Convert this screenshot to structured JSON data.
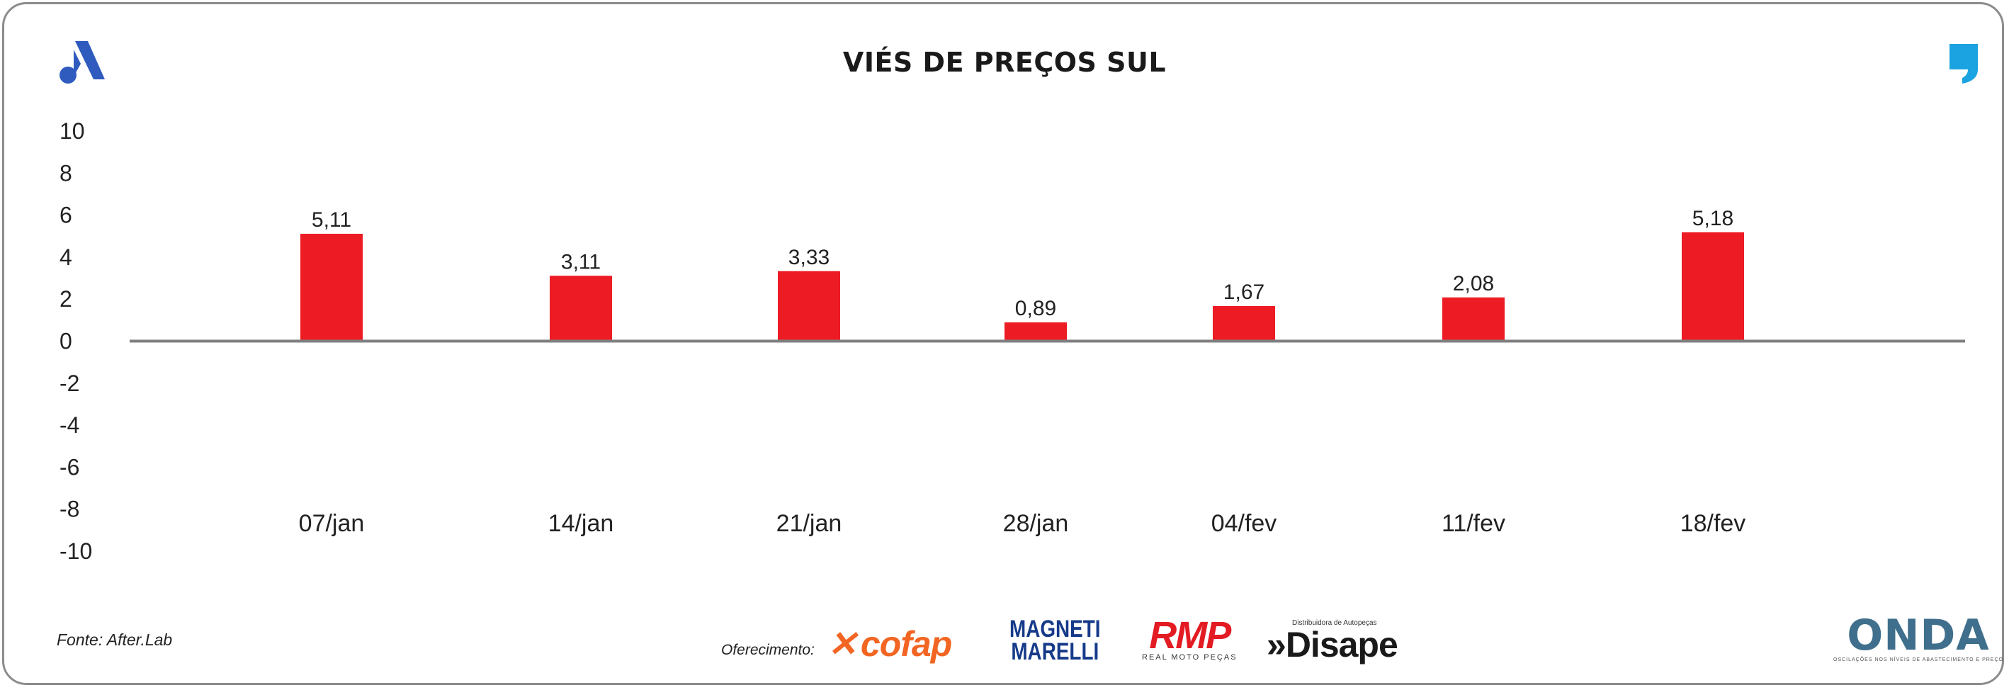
{
  "title": "VIÉS DE PREÇOS SUL",
  "source": "Fonte: After.Lab",
  "sponsors": {
    "label": "Oferecimento:",
    "cofap": "cofap",
    "magneti_line1": "MAGNETI",
    "magneti_line2": "MARELLI",
    "rmp": "RMP",
    "rmp_sub": "REAL MOTO PEÇAS",
    "disape_tag": "Distribuidora de Autopeças",
    "disape": "Disape"
  },
  "onda": {
    "name": "ONDA",
    "sub": "OSCILAÇÕES NOS NÍVEIS DE ABASTECIMENTO E PREÇO"
  },
  "colors": {
    "bar": "#ed1c24",
    "axis": "#7f7f7f",
    "accent_blue": "#2f5bbf",
    "quote_cyan": "#1aa3e0"
  },
  "icons": [
    "brand-a-logo-icon",
    "quote-mark-icon"
  ],
  "chart_data": {
    "type": "bar",
    "title": "VIÉS DE PREÇOS SUL",
    "categories": [
      "07/jan",
      "14/jan",
      "21/jan",
      "28/jan",
      "04/fev",
      "11/fev",
      "18/fev"
    ],
    "series": [
      {
        "values": [
          5.11,
          3.11,
          3.33,
          0.89,
          1.67,
          2.08,
          5.18
        ]
      }
    ],
    "data_labels": [
      "5,11",
      "3,11",
      "3,33",
      "0,89",
      "1,67",
      "2,08",
      "5,18"
    ],
    "yticks": [
      "10",
      "8",
      "6",
      "4",
      "2",
      "0",
      "-2",
      "-4",
      "-6",
      "-8",
      "-10"
    ],
    "ylim": [
      -10,
      10
    ],
    "xlabel": "",
    "ylabel": "",
    "grid": false,
    "legend": "none"
  }
}
